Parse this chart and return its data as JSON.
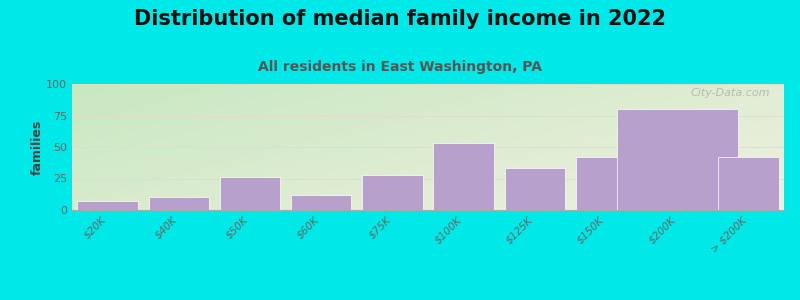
{
  "title": "Distribution of median family income in 2022",
  "subtitle": "All residents in East Washington, PA",
  "ylabel": "families",
  "categories": [
    "$20K",
    "$40K",
    "$50K",
    "$60K",
    "$75K",
    "$100K",
    "$125K",
    "$150K",
    "$200K",
    "> $200K"
  ],
  "values": [
    7,
    10,
    26,
    12,
    28,
    53,
    33,
    42,
    80,
    42
  ],
  "bar_color": "#b8a0cc",
  "bar_edgecolor": "#c8b8d8",
  "background_color": "#00e8e8",
  "plot_bg_top_left": "#c8e8c0",
  "plot_bg_bottom_right": "#f0f0e0",
  "ylim": [
    0,
    100
  ],
  "yticks": [
    0,
    25,
    50,
    75,
    100
  ],
  "title_fontsize": 15,
  "subtitle_fontsize": 10,
  "ylabel_fontsize": 9,
  "watermark": "City-Data.com",
  "grid_color": "#ddddcc",
  "tick_color": "#666666"
}
